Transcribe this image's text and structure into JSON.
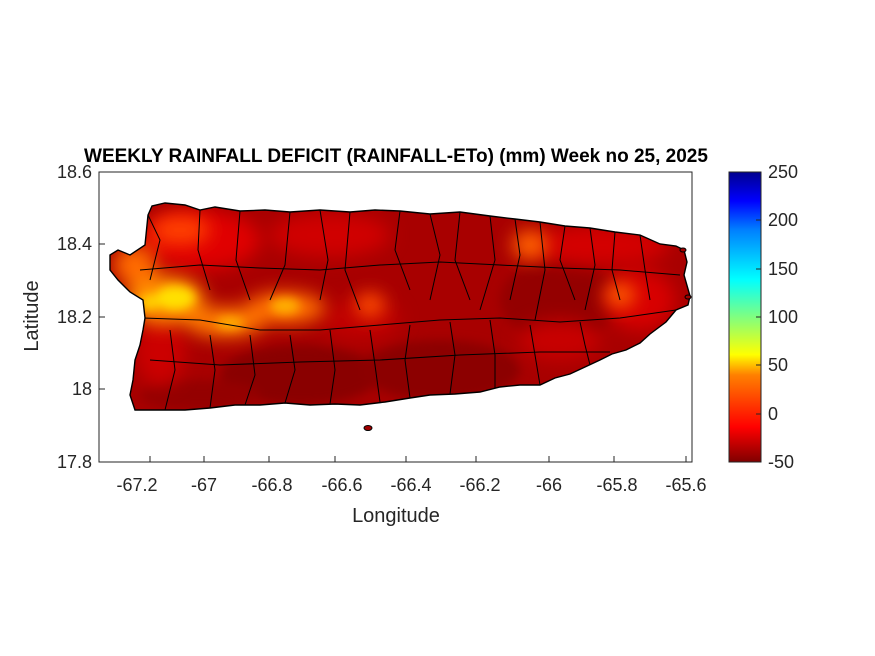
{
  "chart_data": {
    "type": "heatmap",
    "title": "WEEKLY RAINFALL DEFICIT (RAINFALL-ETo) (mm) Week no 25, 2025",
    "xlabel": "Longitude",
    "ylabel": "Latitude",
    "xlim": [
      -67.3,
      -65.58
    ],
    "ylim": [
      17.8,
      18.6
    ],
    "x_ticks": [
      -67.2,
      -67,
      -66.8,
      -66.6,
      -66.4,
      -66.2,
      -66,
      -65.8,
      -65.6
    ],
    "x_tick_labels": [
      "-67.2",
      "-67",
      "-66.8",
      "-66.6",
      "-66.4",
      "-66.2",
      "-66",
      "-65.8",
      "-65.6"
    ],
    "y_ticks": [
      17.8,
      18,
      18.2,
      18.4,
      18.6
    ],
    "y_tick_labels": [
      "17.8",
      "18",
      "18.2",
      "18.4",
      "18.6"
    ],
    "colorbar": {
      "range": [
        -50,
        250
      ],
      "ticks": [
        -50,
        0,
        50,
        100,
        150,
        200,
        250
      ],
      "tick_labels": [
        "-50",
        "0",
        "50",
        "100",
        "150",
        "200",
        "250"
      ],
      "colormap": "jet"
    },
    "field_description_values": [
      {
        "lon": -67.1,
        "lat": 18.26,
        "value": 45
      },
      {
        "lon": -67.05,
        "lat": 18.31,
        "value": 30
      },
      {
        "lon": -66.95,
        "lat": 18.17,
        "value": 35
      },
      {
        "lon": -66.77,
        "lat": 18.23,
        "value": 25
      },
      {
        "lon": -66.55,
        "lat": 18.22,
        "value": 10
      },
      {
        "lon": -66.03,
        "lat": 18.38,
        "value": 15
      },
      {
        "lon": -65.8,
        "lat": 18.25,
        "value": 10
      },
      {
        "lon": -67.2,
        "lat": 18.38,
        "value": 15
      },
      {
        "lon": -66.3,
        "lat": 18.05,
        "value": -45
      },
      {
        "lon": -66.7,
        "lat": 18.0,
        "value": -40
      }
    ]
  },
  "colors": {
    "background": "#ffffff",
    "axes": "#262626",
    "land_base": "#a00000",
    "boundary": "#000000"
  }
}
